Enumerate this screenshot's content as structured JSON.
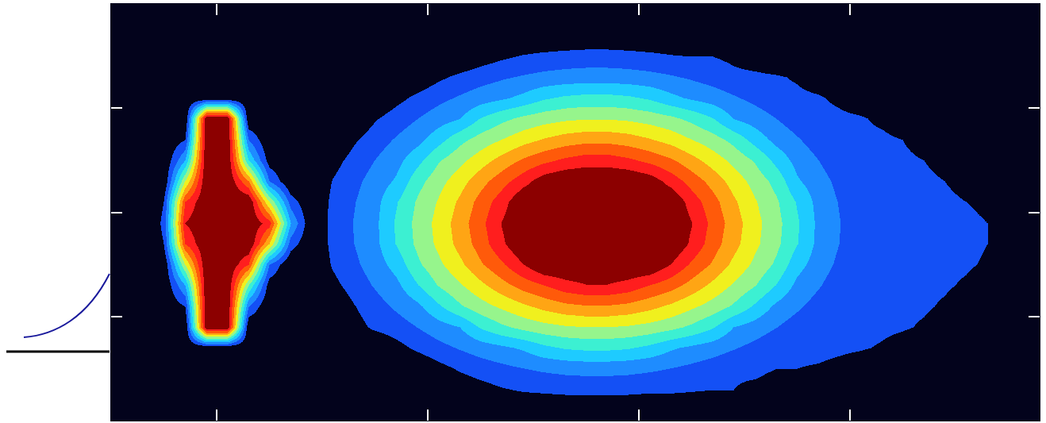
{
  "chart_data": {
    "type": "heatmap",
    "x": [
      0.5,
      1.5,
      2.5,
      3.5,
      4.5,
      5.5,
      6.5,
      7.5,
      8.5,
      9.5,
      10.5,
      11.5,
      12.5,
      13.5,
      14.5,
      15.5,
      16.5,
      17.5,
      18.5,
      19.5,
      20.5,
      21.5,
      22.5,
      23.5,
      24.5,
      25.5,
      26.5,
      27.5,
      28.5,
      29.5,
      30.5,
      31.5,
      32.5,
      33.5,
      34.5,
      35.5,
      36.5,
      37.5,
      38.5,
      39.5,
      40.5,
      41.5,
      42.5,
      43.5
    ],
    "y": [
      0.5,
      1.5,
      2.5,
      3.5,
      4.5,
      5.5,
      6.5,
      7.5,
      8.5,
      9.5,
      10.5,
      11.5,
      12.5,
      13.5,
      14.5,
      15.5,
      16.5,
      17.5,
      18.5,
      19.5
    ],
    "z": [
      [
        0,
        0,
        0,
        0,
        0,
        0,
        0,
        0,
        0,
        0,
        0,
        0,
        0,
        0,
        0,
        0,
        0,
        0,
        0,
        0,
        0,
        0,
        0,
        0,
        0,
        0,
        0,
        0,
        0,
        0,
        0,
        0,
        0,
        0,
        0,
        0,
        0,
        0,
        0,
        0,
        0,
        0,
        0,
        0
      ],
      [
        0,
        0,
        0,
        0,
        0,
        0,
        0,
        0,
        0,
        0,
        0,
        0,
        0,
        0,
        0,
        0,
        0.3,
        0.6,
        0.9,
        1.1,
        1.2,
        1.3,
        1.3,
        1.3,
        1.3,
        1.2,
        1.2,
        1.1,
        1.0,
        1.0,
        0.8,
        0.6,
        0.3,
        0,
        0,
        0,
        0,
        0,
        0,
        0,
        0,
        0,
        0,
        0
      ],
      [
        0,
        0,
        0,
        0,
        0,
        0,
        0,
        0,
        0,
        0,
        0,
        0,
        0,
        0,
        0.1,
        0.66,
        1.13,
        1.47,
        1.75,
        1.99,
        2.17,
        2.3,
        2.37,
        2.37,
        2.3,
        2.17,
        1.99,
        1.75,
        1.47,
        1.13,
        1.2,
        1.0,
        1.0,
        0.9,
        0.7,
        0.4,
        0,
        0,
        0,
        0,
        0,
        0,
        0,
        0
      ],
      [
        0,
        0,
        0,
        0,
        0,
        0,
        0,
        0,
        0,
        0,
        0,
        0,
        0,
        0.64,
        1.22,
        1.68,
        2.09,
        2.47,
        2.79,
        3.15,
        3.75,
        4.1,
        4.23,
        4.23,
        4.1,
        3.75,
        3.15,
        2.79,
        2.47,
        2.09,
        1.68,
        1.22,
        1.3,
        1.3,
        1.2,
        1.1,
        0.9,
        0.6,
        0.3,
        0,
        0,
        0,
        0,
        0
      ],
      [
        0,
        0,
        0,
        0,
        11,
        11,
        0,
        0,
        0,
        0,
        0,
        0.6,
        1.2,
        1.51,
        2.02,
        2.54,
        2.99,
        4.1,
        4.79,
        5.29,
        5.64,
        5.87,
        5.99,
        5.99,
        5.87,
        5.64,
        5.29,
        4.79,
        4.1,
        2.99,
        2.54,
        2.02,
        1.51,
        1.4,
        1.3,
        1.3,
        1.2,
        1.1,
        0.9,
        0.6,
        0.3,
        0,
        0,
        0
      ],
      [
        0,
        0,
        0,
        1,
        11,
        11,
        2,
        0,
        0,
        0,
        0.09,
        0.95,
        1.59,
        2.17,
        2.75,
        3.82,
        4.84,
        5.56,
        6.18,
        6.78,
        7.3,
        7.7,
        7.89,
        7.89,
        7.7,
        7.3,
        6.78,
        6.18,
        5.56,
        4.84,
        3.82,
        2.75,
        2.17,
        1.59,
        1.4,
        1.3,
        1.3,
        1.2,
        1.1,
        0.9,
        0.6,
        0.2,
        0,
        0
      ],
      [
        0,
        0,
        0,
        3,
        11,
        11,
        5,
        0.5,
        0,
        0,
        0.71,
        1.45,
        2.1,
        2.74,
        3.96,
        5.06,
        5.88,
        6.74,
        7.64,
        8.43,
        9.01,
        9.64,
        9.96,
        9.96,
        9.64,
        9.01,
        8.43,
        7.64,
        6.74,
        5.88,
        5.06,
        3.96,
        2.74,
        2.1,
        1.45,
        1.4,
        1.3,
        1.3,
        1.2,
        1.1,
        0.9,
        0.6,
        0.2,
        0
      ],
      [
        0,
        0,
        0,
        6,
        11,
        11,
        9,
        2,
        0,
        0,
        1.12,
        1.8,
        2.49,
        3.39,
        4.81,
        5.77,
        6.75,
        7.86,
        8.83,
        9.98,
        11,
        11,
        11,
        11,
        11,
        11,
        9.98,
        8.83,
        7.86,
        6.75,
        5.77,
        4.81,
        3.39,
        2.49,
        1.8,
        1.12,
        1.3,
        1.3,
        1.3,
        1.2,
        1.1,
        0.9,
        0.6,
        0.3
      ],
      [
        0,
        0,
        1,
        9,
        11,
        11,
        11,
        7,
        1.5,
        0,
        1.31,
        2.0,
        2.71,
        4.05,
        5.24,
        6.22,
        7.35,
        8.46,
        9.8,
        11,
        11,
        11,
        11,
        11,
        11,
        11,
        11,
        9.8,
        8.46,
        7.35,
        6.22,
        5.24,
        4.05,
        2.71,
        2.0,
        1.31,
        1.3,
        1.3,
        1.3,
        1.2,
        1.2,
        1.0,
        0.8,
        0.5
      ],
      [
        0,
        0,
        1.2,
        10,
        11,
        11,
        11,
        9.5,
        3,
        0,
        1.36,
        2.05,
        2.76,
        4.15,
        5.33,
        6.33,
        7.51,
        8.68,
        10.05,
        11,
        11,
        11,
        11,
        11,
        11,
        11,
        11,
        10.05,
        8.68,
        7.51,
        6.33,
        5.33,
        4.15,
        2.76,
        2.05,
        1.36,
        1.3,
        1.3,
        1.3,
        1.2,
        1.2,
        1.0,
        0.9,
        0.6
      ],
      [
        0,
        0,
        1,
        9,
        11,
        11,
        11,
        6,
        1.5,
        0,
        1.27,
        1.95,
        2.66,
        3.91,
        5.14,
        6.09,
        7.19,
        8.37,
        9.55,
        10.94,
        11,
        11,
        11,
        11,
        11,
        11,
        10.94,
        9.55,
        8.37,
        7.19,
        6.09,
        5.14,
        3.91,
        2.66,
        1.95,
        1.27,
        1.3,
        1.3,
        1.2,
        1.2,
        1.0,
        0.8,
        0.4,
        0
      ],
      [
        0,
        0,
        0,
        6,
        11,
        11,
        8,
        2,
        0,
        0,
        1.05,
        1.73,
        2.41,
        3.14,
        4.64,
        5.62,
        6.57,
        7.61,
        8.59,
        9.59,
        10.6,
        11,
        11,
        11,
        11,
        10.6,
        9.59,
        8.59,
        7.61,
        6.57,
        5.62,
        4.64,
        3.14,
        2.41,
        1.73,
        1.05,
        1.3,
        1.2,
        1.2,
        1.0,
        0.7,
        0.3,
        0,
        0
      ],
      [
        0,
        0,
        0,
        3,
        11,
        11,
        4,
        0.5,
        0,
        0,
        0.62,
        1.38,
        2.01,
        2.65,
        3.7,
        4.9,
        5.73,
        6.54,
        7.38,
        8.17,
        8.75,
        9.23,
        9.55,
        9.55,
        9.23,
        8.75,
        8.17,
        7.38,
        6.54,
        5.73,
        4.9,
        3.7,
        2.65,
        2.01,
        1.38,
        1.3,
        1.2,
        1.2,
        1.0,
        0.7,
        0.3,
        0,
        0,
        0
      ],
      [
        0,
        0,
        0,
        1,
        11,
        11,
        2,
        0,
        0,
        0,
        0.02,
        0.87,
        1.53,
        2.11,
        2.68,
        3.62,
        4.7,
        5.44,
        6.03,
        6.63,
        7.1,
        7.49,
        7.69,
        7.69,
        7.49,
        7.1,
        6.63,
        6.03,
        5.44,
        4.7,
        3.62,
        2.68,
        2.11,
        1.53,
        1.3,
        1.2,
        1.2,
        1.0,
        0.6,
        0.2,
        0,
        0,
        0,
        0
      ],
      [
        0,
        0,
        0,
        0,
        11,
        11,
        0,
        0,
        0,
        0,
        0,
        0.1,
        0.89,
        1.48,
        1.99,
        2.51,
        2.96,
        4.03,
        4.72,
        5.23,
        5.58,
        5.81,
        5.93,
        5.93,
        5.81,
        5.58,
        5.23,
        4.72,
        4.03,
        2.96,
        2.51,
        1.99,
        1.48,
        1.3,
        1.2,
        1.1,
        0.8,
        0.4,
        0,
        0,
        0,
        0,
        0,
        0
      ],
      [
        0,
        0,
        0,
        0,
        0,
        0,
        0,
        0,
        0,
        0,
        0,
        0,
        0,
        0.67,
        1.25,
        1.71,
        2.12,
        2.51,
        2.83,
        3.26,
        3.85,
        4.17,
        4.31,
        4.31,
        4.17,
        3.85,
        3.26,
        2.83,
        2.51,
        2.12,
        1.71,
        1.3,
        1.2,
        1.1,
        0.8,
        0.4,
        0,
        0,
        0,
        0,
        0,
        0,
        0,
        0
      ],
      [
        0,
        0,
        0,
        0,
        0,
        0,
        0,
        0,
        0,
        0,
        0,
        0,
        0,
        0,
        0.23,
        0.8,
        1.24,
        1.58,
        1.87,
        2.11,
        2.3,
        2.43,
        2.49,
        2.49,
        2.43,
        2.3,
        2.11,
        1.87,
        1.58,
        1.24,
        1.2,
        1.1,
        0.9,
        0.5,
        0.1,
        0,
        0,
        0,
        0,
        0,
        0,
        0,
        0,
        0
      ],
      [
        0,
        0,
        0,
        0,
        0,
        0,
        0,
        0,
        0,
        0,
        0,
        0,
        0,
        0,
        0,
        0,
        0.04,
        0.47,
        0.83,
        1.09,
        1.26,
        1.37,
        1.43,
        1.43,
        1.37,
        1.26,
        1.09,
        1.0,
        1.0,
        0.8,
        0.5,
        0.2,
        0,
        0,
        0,
        0,
        0,
        0,
        0,
        0,
        0,
        0,
        0,
        0
      ],
      [
        0,
        0,
        0,
        0,
        0,
        0,
        0,
        0,
        0,
        0,
        0,
        0,
        0,
        0,
        0,
        0,
        0,
        0,
        0,
        0,
        0,
        0.08,
        0.15,
        0.15,
        0.08,
        0,
        0,
        0,
        0,
        0,
        0,
        0,
        0,
        0,
        0,
        0,
        0,
        0,
        0,
        0,
        0,
        0,
        0,
        0
      ],
      [
        0,
        0,
        0,
        0,
        0,
        0,
        0,
        0,
        0,
        0,
        0,
        0,
        0,
        0,
        0,
        0,
        0,
        0,
        0,
        0,
        0,
        0,
        0,
        0,
        0,
        0,
        0,
        0,
        0,
        0,
        0,
        0,
        0,
        0,
        0,
        0,
        0,
        0,
        0,
        0,
        0,
        0,
        0,
        0
      ]
    ],
    "zlim": [
      0,
      11
    ],
    "xlim": [
      0,
      44
    ],
    "ylim": [
      0,
      20
    ],
    "xticks": [
      5,
      15,
      25,
      35
    ],
    "yticks": [
      5,
      10,
      15
    ],
    "tick_labels": false
  }
}
